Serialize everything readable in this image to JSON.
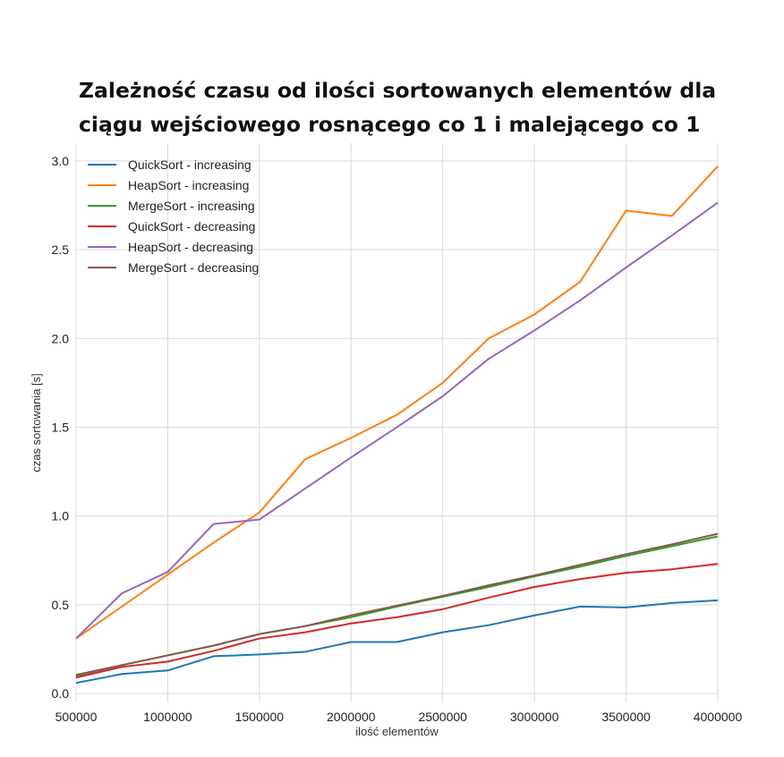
{
  "chart_data": {
    "type": "line",
    "title_lines": [
      "Zależność czasu od ilości sortowanych elementów dla",
      "ciągu wejściowego rosnącego co 1 i malejącego co 1"
    ],
    "xlabel": "ilość elementów",
    "ylabel": "czas sortowania [s]",
    "xlim": [
      500000,
      4000000
    ],
    "ylim": [
      -0.05,
      3.1
    ],
    "x_ticks": [
      "500000",
      "1000000",
      "1500000",
      "2000000",
      "2500000",
      "3000000",
      "3500000",
      "4000000"
    ],
    "y_ticks": [
      "0.0",
      "0.5",
      "1.0",
      "1.5",
      "2.0",
      "2.5",
      "3.0"
    ],
    "grid": true,
    "legend_position": "top-left",
    "x": [
      500000,
      750000,
      1000000,
      1250000,
      1500000,
      1750000,
      2000000,
      2250000,
      2500000,
      2750000,
      3000000,
      3250000,
      3500000,
      3750000,
      4000000
    ],
    "series": [
      {
        "name": "QuickSort - increasing",
        "color": "#1f77b4",
        "values": [
          0.06,
          0.11,
          0.13,
          0.21,
          0.22,
          0.235,
          0.29,
          0.29,
          0.345,
          0.385,
          0.44,
          0.49,
          0.485,
          0.51,
          0.525
        ]
      },
      {
        "name": "HeapSort - increasing",
        "color": "#ff7f0e",
        "values": [
          0.31,
          0.49,
          0.67,
          0.85,
          1.02,
          1.32,
          1.44,
          1.57,
          1.75,
          2.0,
          2.135,
          2.32,
          2.72,
          2.69,
          2.97
        ]
      },
      {
        "name": "MergeSort - increasing",
        "color": "#2ca02c",
        "values": [
          0.1,
          0.16,
          0.215,
          0.27,
          0.335,
          0.38,
          0.43,
          0.49,
          0.545,
          0.6,
          0.66,
          0.715,
          0.775,
          0.83,
          0.885
        ]
      },
      {
        "name": "QuickSort - decreasing",
        "color": "#d62728",
        "values": [
          0.09,
          0.15,
          0.18,
          0.24,
          0.31,
          0.345,
          0.395,
          0.43,
          0.475,
          0.54,
          0.6,
          0.645,
          0.68,
          0.7,
          0.73
        ]
      },
      {
        "name": "HeapSort - decreasing",
        "color": "#9467bd",
        "values": [
          0.31,
          0.565,
          0.685,
          0.955,
          0.98,
          1.155,
          1.33,
          1.5,
          1.675,
          1.885,
          2.045,
          2.215,
          2.4,
          2.58,
          2.765
        ]
      },
      {
        "name": "MergeSort - decreasing",
        "color": "#8c564b",
        "values": [
          0.105,
          0.16,
          0.215,
          0.27,
          0.335,
          0.38,
          0.44,
          0.495,
          0.55,
          0.61,
          0.665,
          0.725,
          0.785,
          0.84,
          0.9
        ]
      }
    ]
  }
}
